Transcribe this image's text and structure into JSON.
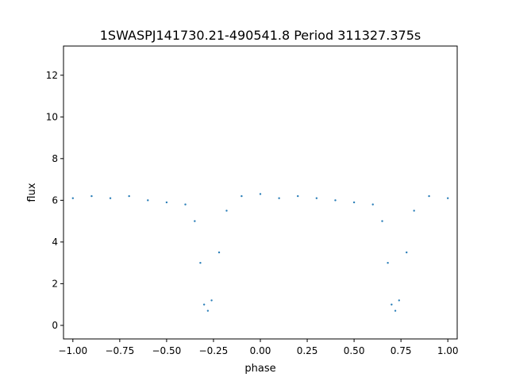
{
  "chart_data": {
    "type": "scatter",
    "title": "1SWASPJ141730.21-490541.8 Period 311327.375s",
    "xlabel": "phase",
    "ylabel": "flux",
    "xlim": [
      -1.05,
      1.05
    ],
    "ylim": [
      -0.65,
      13.4
    ],
    "x_ticks": [
      -1.0,
      -0.75,
      -0.5,
      -0.25,
      0.0,
      0.25,
      0.5,
      0.75,
      1.0
    ],
    "x_tick_labels": [
      "−1.00",
      "−0.75",
      "−0.50",
      "−0.25",
      "0.00",
      "0.25",
      "0.50",
      "0.75",
      "1.00"
    ],
    "y_ticks": [
      0,
      2,
      4,
      6,
      8,
      10,
      12
    ],
    "y_tick_labels": [
      "0",
      "2",
      "4",
      "6",
      "8",
      "10",
      "12"
    ],
    "grid": false,
    "marker_color": "#1f77b4",
    "series": [
      {
        "description_level_points": [
          {
            "x": -1.0,
            "y": 6.1
          },
          {
            "x": -0.9,
            "y": 6.2
          },
          {
            "x": -0.8,
            "y": 6.1
          },
          {
            "x": -0.7,
            "y": 6.2
          },
          {
            "x": -0.6,
            "y": 6.0
          },
          {
            "x": -0.5,
            "y": 5.9
          },
          {
            "x": -0.4,
            "y": 5.8
          },
          {
            "x": -0.35,
            "y": 5.0
          },
          {
            "x": -0.32,
            "y": 3.0
          },
          {
            "x": -0.3,
            "y": 1.0
          },
          {
            "x": -0.28,
            "y": 0.7
          },
          {
            "x": -0.26,
            "y": 1.2
          },
          {
            "x": -0.22,
            "y": 3.5
          },
          {
            "x": -0.18,
            "y": 5.5
          },
          {
            "x": -0.1,
            "y": 6.2
          },
          {
            "x": 0.0,
            "y": 6.3
          },
          {
            "x": 0.1,
            "y": 6.1
          },
          {
            "x": 0.2,
            "y": 6.2
          },
          {
            "x": 0.3,
            "y": 6.1
          },
          {
            "x": 0.4,
            "y": 6.0
          },
          {
            "x": 0.5,
            "y": 5.9
          },
          {
            "x": 0.6,
            "y": 5.8
          },
          {
            "x": 0.65,
            "y": 5.0
          },
          {
            "x": 0.68,
            "y": 3.0
          },
          {
            "x": 0.7,
            "y": 1.0
          },
          {
            "x": 0.72,
            "y": 0.7
          },
          {
            "x": 0.74,
            "y": 1.2
          },
          {
            "x": 0.78,
            "y": 3.5
          },
          {
            "x": 0.82,
            "y": 5.5
          },
          {
            "x": 0.9,
            "y": 6.2
          },
          {
            "x": 1.0,
            "y": 6.1
          }
        ]
      }
    ]
  }
}
